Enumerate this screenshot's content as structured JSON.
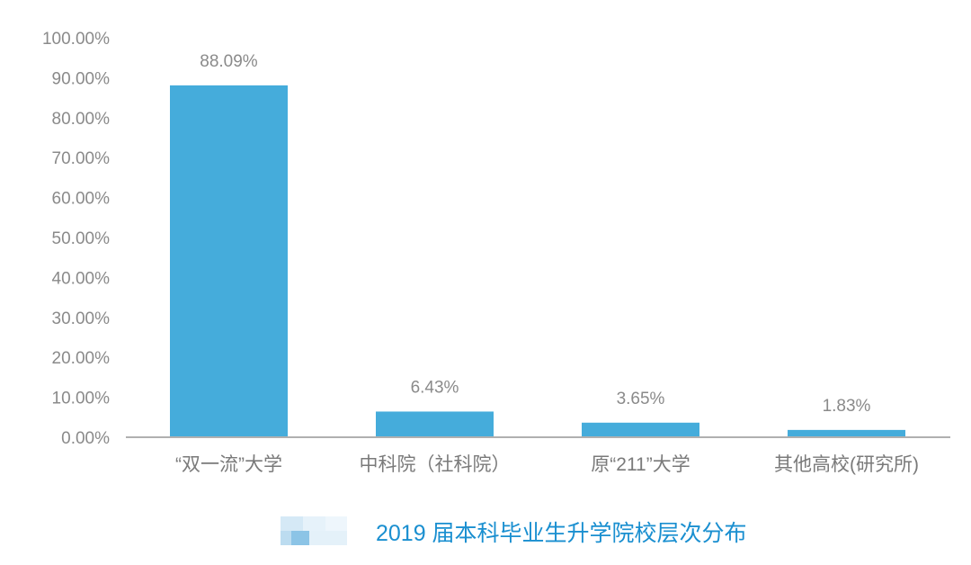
{
  "chart_data": {
    "type": "bar",
    "title": "2019 届本科毕业生升学院校层次分布",
    "xlabel": "",
    "ylabel": "",
    "categories": [
      "“双一流”大学",
      "中科院（社科院）",
      "原“211”大学",
      "其他高校(研究所)"
    ],
    "values": [
      88.09,
      6.43,
      3.65,
      1.83
    ],
    "data_labels": [
      "88.09%",
      "6.43%",
      "3.65%",
      "1.83%"
    ],
    "ylim": [
      0,
      100
    ],
    "yticks": [
      "0.00%",
      "10.00%",
      "20.00%",
      "30.00%",
      "40.00%",
      "50.00%",
      "60.00%",
      "70.00%",
      "80.00%",
      "90.00%",
      "100.00%"
    ],
    "grid": false,
    "legend": "none",
    "colors": {
      "bar": "#45acdb",
      "axis": "#b0b0b0",
      "title": "#1a8fd0"
    }
  }
}
